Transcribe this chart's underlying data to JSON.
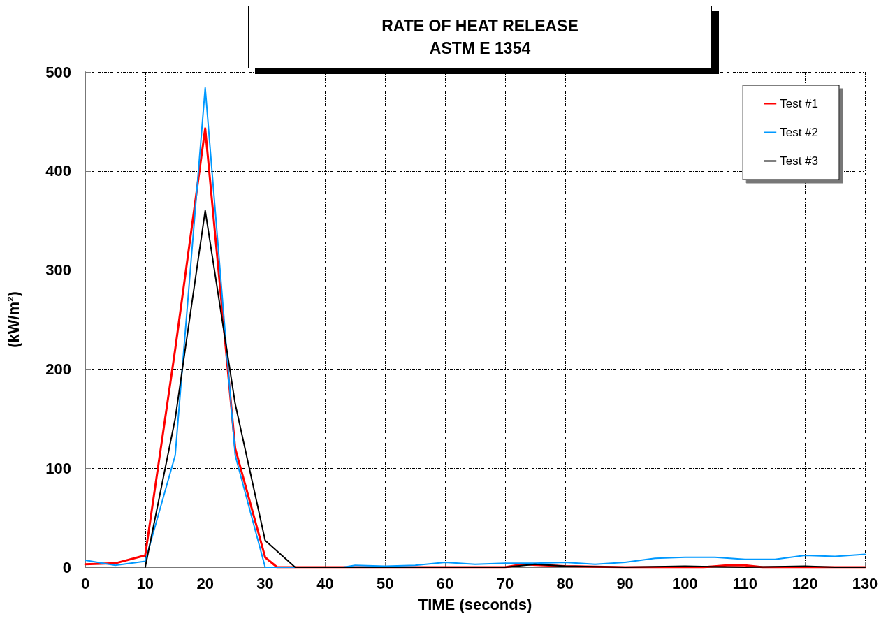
{
  "chart_data": {
    "type": "line",
    "title": "RATE OF HEAT RELEASE",
    "subtitle": "ASTM E 1354",
    "xlabel": "TIME (seconds)",
    "ylabel": "(kW/m²)",
    "xlim": [
      0,
      130
    ],
    "xticks": [
      0,
      10,
      20,
      30,
      40,
      50,
      60,
      70,
      80,
      90,
      100,
      110,
      120,
      130
    ],
    "ylim": [
      0,
      500
    ],
    "yticks": [
      0,
      100,
      200,
      300,
      400,
      500
    ],
    "grid": true,
    "legend": "top right",
    "marker": "none",
    "line_style": "solid",
    "series": [
      {
        "name": "Test #1",
        "color": "#ff0000",
        "x": [
          0,
          5,
          10,
          15,
          20,
          25,
          30,
          32,
          40,
          50,
          60,
          70,
          73,
          80,
          90,
          100,
          103,
          107,
          110,
          113,
          120,
          130
        ],
        "values": [
          3,
          4,
          12,
          220,
          443,
          120,
          10,
          0,
          0,
          0,
          0,
          0,
          3,
          1,
          0,
          0,
          0,
          2,
          2,
          0,
          0,
          0
        ]
      },
      {
        "name": "Test #2",
        "color": "#0099ff",
        "x": [
          0,
          5,
          10,
          15,
          20,
          25,
          30,
          35,
          40,
          43,
          45,
          50,
          55,
          60,
          65,
          70,
          75,
          80,
          85,
          90,
          95,
          100,
          105,
          110,
          115,
          120,
          125,
          130
        ],
        "values": [
          7,
          2,
          6,
          113,
          484,
          113,
          0,
          0,
          0,
          0,
          2,
          1,
          2,
          5,
          3,
          4,
          4,
          5,
          3,
          5,
          9,
          10,
          10,
          8,
          8,
          12,
          11,
          13
        ]
      },
      {
        "name": "Test #3",
        "color": "#000000",
        "x": [
          10,
          15,
          20,
          25,
          30,
          35,
          40,
          50,
          60,
          70,
          75,
          80,
          90,
          100,
          110,
          120,
          125,
          130
        ],
        "values": [
          0,
          150,
          360,
          165,
          27,
          0,
          0,
          0,
          0,
          0,
          3,
          1,
          0,
          1,
          0,
          1,
          0,
          0
        ]
      }
    ]
  }
}
